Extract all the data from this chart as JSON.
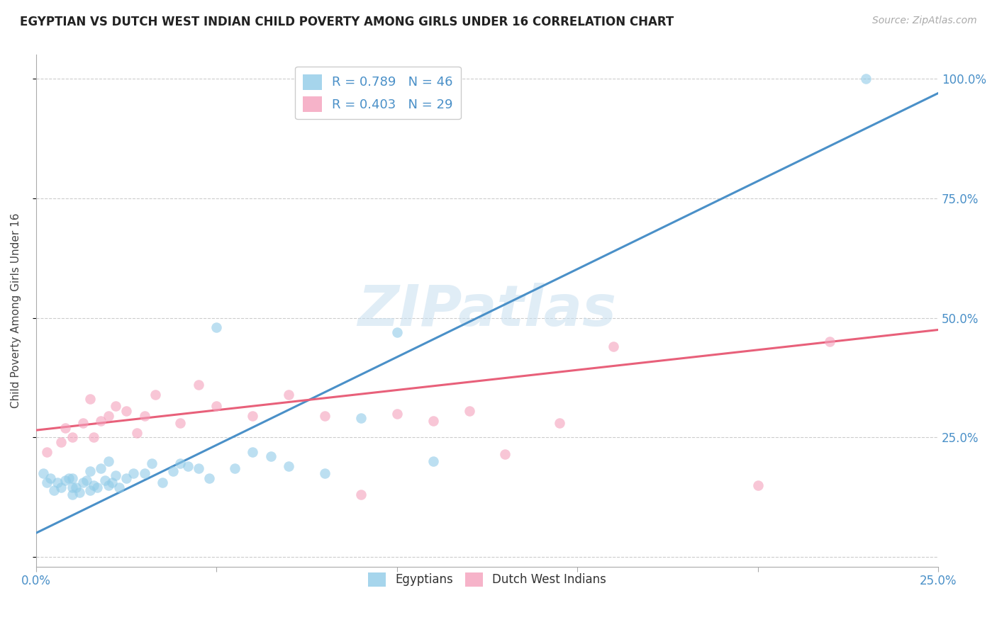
{
  "title": "EGYPTIAN VS DUTCH WEST INDIAN CHILD POVERTY AMONG GIRLS UNDER 16 CORRELATION CHART",
  "source": "Source: ZipAtlas.com",
  "ylabel": "Child Poverty Among Girls Under 16",
  "xlim": [
    0.0,
    0.25
  ],
  "ylim": [
    -0.02,
    1.05
  ],
  "yticks": [
    0.0,
    0.25,
    0.5,
    0.75,
    1.0
  ],
  "ytick_labels": [
    "",
    "25.0%",
    "50.0%",
    "75.0%",
    "100.0%"
  ],
  "xticks": [
    0.0,
    0.05,
    0.1,
    0.15,
    0.2,
    0.25
  ],
  "xtick_labels": [
    "0.0%",
    "",
    "",
    "",
    "",
    "25.0%"
  ],
  "blue_R": 0.789,
  "blue_N": 46,
  "pink_R": 0.403,
  "pink_N": 29,
  "blue_color": "#90cbe8",
  "pink_color": "#f4a0bc",
  "blue_line_color": "#4a90c8",
  "pink_line_color": "#e8607a",
  "watermark_text": "ZIPatlas",
  "blue_scatter_x": [
    0.002,
    0.003,
    0.004,
    0.005,
    0.006,
    0.007,
    0.008,
    0.009,
    0.01,
    0.01,
    0.01,
    0.011,
    0.012,
    0.013,
    0.014,
    0.015,
    0.015,
    0.016,
    0.017,
    0.018,
    0.019,
    0.02,
    0.02,
    0.021,
    0.022,
    0.023,
    0.025,
    0.027,
    0.03,
    0.032,
    0.035,
    0.038,
    0.04,
    0.042,
    0.045,
    0.048,
    0.05,
    0.055,
    0.06,
    0.065,
    0.07,
    0.08,
    0.09,
    0.1,
    0.11,
    0.23
  ],
  "blue_scatter_y": [
    0.175,
    0.155,
    0.165,
    0.14,
    0.155,
    0.145,
    0.16,
    0.165,
    0.13,
    0.145,
    0.165,
    0.145,
    0.135,
    0.155,
    0.16,
    0.14,
    0.18,
    0.15,
    0.145,
    0.185,
    0.16,
    0.15,
    0.2,
    0.155,
    0.17,
    0.145,
    0.165,
    0.175,
    0.175,
    0.195,
    0.155,
    0.18,
    0.195,
    0.19,
    0.185,
    0.165,
    0.48,
    0.185,
    0.22,
    0.21,
    0.19,
    0.175,
    0.29,
    0.47,
    0.2,
    1.0
  ],
  "pink_scatter_x": [
    0.003,
    0.007,
    0.008,
    0.01,
    0.013,
    0.015,
    0.016,
    0.018,
    0.02,
    0.022,
    0.025,
    0.028,
    0.03,
    0.033,
    0.04,
    0.045,
    0.05,
    0.06,
    0.07,
    0.08,
    0.09,
    0.1,
    0.11,
    0.12,
    0.13,
    0.145,
    0.16,
    0.2,
    0.22
  ],
  "pink_scatter_y": [
    0.22,
    0.24,
    0.27,
    0.25,
    0.28,
    0.33,
    0.25,
    0.285,
    0.295,
    0.315,
    0.305,
    0.26,
    0.295,
    0.34,
    0.28,
    0.36,
    0.315,
    0.295,
    0.34,
    0.295,
    0.13,
    0.3,
    0.285,
    0.305,
    0.215,
    0.28,
    0.44,
    0.15,
    0.45
  ],
  "blue_line_x": [
    0.0,
    0.25
  ],
  "blue_line_y": [
    0.05,
    0.97
  ],
  "pink_line_x": [
    0.0,
    0.25
  ],
  "pink_line_y": [
    0.265,
    0.475
  ]
}
